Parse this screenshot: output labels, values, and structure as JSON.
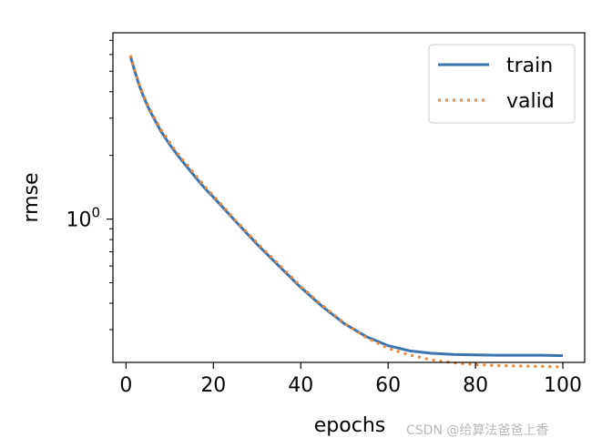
{
  "chart_data": {
    "type": "line",
    "xlabel": "epochs",
    "ylabel": "rmse",
    "xlim": [
      -3,
      105
    ],
    "ylim": [
      0.21,
      7.6
    ],
    "yscale": "log",
    "x_ticks": [
      0,
      20,
      40,
      60,
      80,
      100
    ],
    "x_tick_labels": [
      "0",
      "20",
      "40",
      "60",
      "80",
      "100"
    ],
    "y_ticks": [
      1
    ],
    "y_tick_labels": [
      {
        "base": "10",
        "exp": "0"
      }
    ],
    "grid": false,
    "legend_position": "top-right",
    "series": [
      {
        "name": "train",
        "color": "#3b75af",
        "style": "solid",
        "x": [
          1,
          2,
          3,
          4,
          5,
          6,
          8,
          10,
          12,
          15,
          18,
          20,
          25,
          30,
          35,
          40,
          45,
          50,
          55,
          60,
          65,
          70,
          75,
          80,
          85,
          90,
          95,
          100
        ],
        "y": [
          5.9,
          5.0,
          4.3,
          3.8,
          3.4,
          3.1,
          2.6,
          2.25,
          1.98,
          1.66,
          1.4,
          1.27,
          0.98,
          0.76,
          0.6,
          0.475,
          0.385,
          0.32,
          0.278,
          0.252,
          0.238,
          0.232,
          0.229,
          0.228,
          0.227,
          0.227,
          0.227,
          0.226
        ]
      },
      {
        "name": "valid",
        "color": "#ef8636",
        "style": "dotted",
        "x": [
          1,
          2,
          3,
          4,
          5,
          6,
          8,
          10,
          12,
          15,
          18,
          20,
          25,
          30,
          35,
          40,
          45,
          50,
          55,
          60,
          65,
          70,
          75,
          80,
          85,
          90,
          95,
          100
        ],
        "y": [
          5.95,
          5.05,
          4.35,
          3.85,
          3.45,
          3.15,
          2.65,
          2.3,
          2.02,
          1.7,
          1.43,
          1.29,
          0.99,
          0.77,
          0.61,
          0.48,
          0.39,
          0.322,
          0.275,
          0.245,
          0.227,
          0.216,
          0.209,
          0.205,
          0.203,
          0.202,
          0.201,
          0.2
        ]
      }
    ]
  },
  "watermark": "CSDN @给算法爸爸上香"
}
